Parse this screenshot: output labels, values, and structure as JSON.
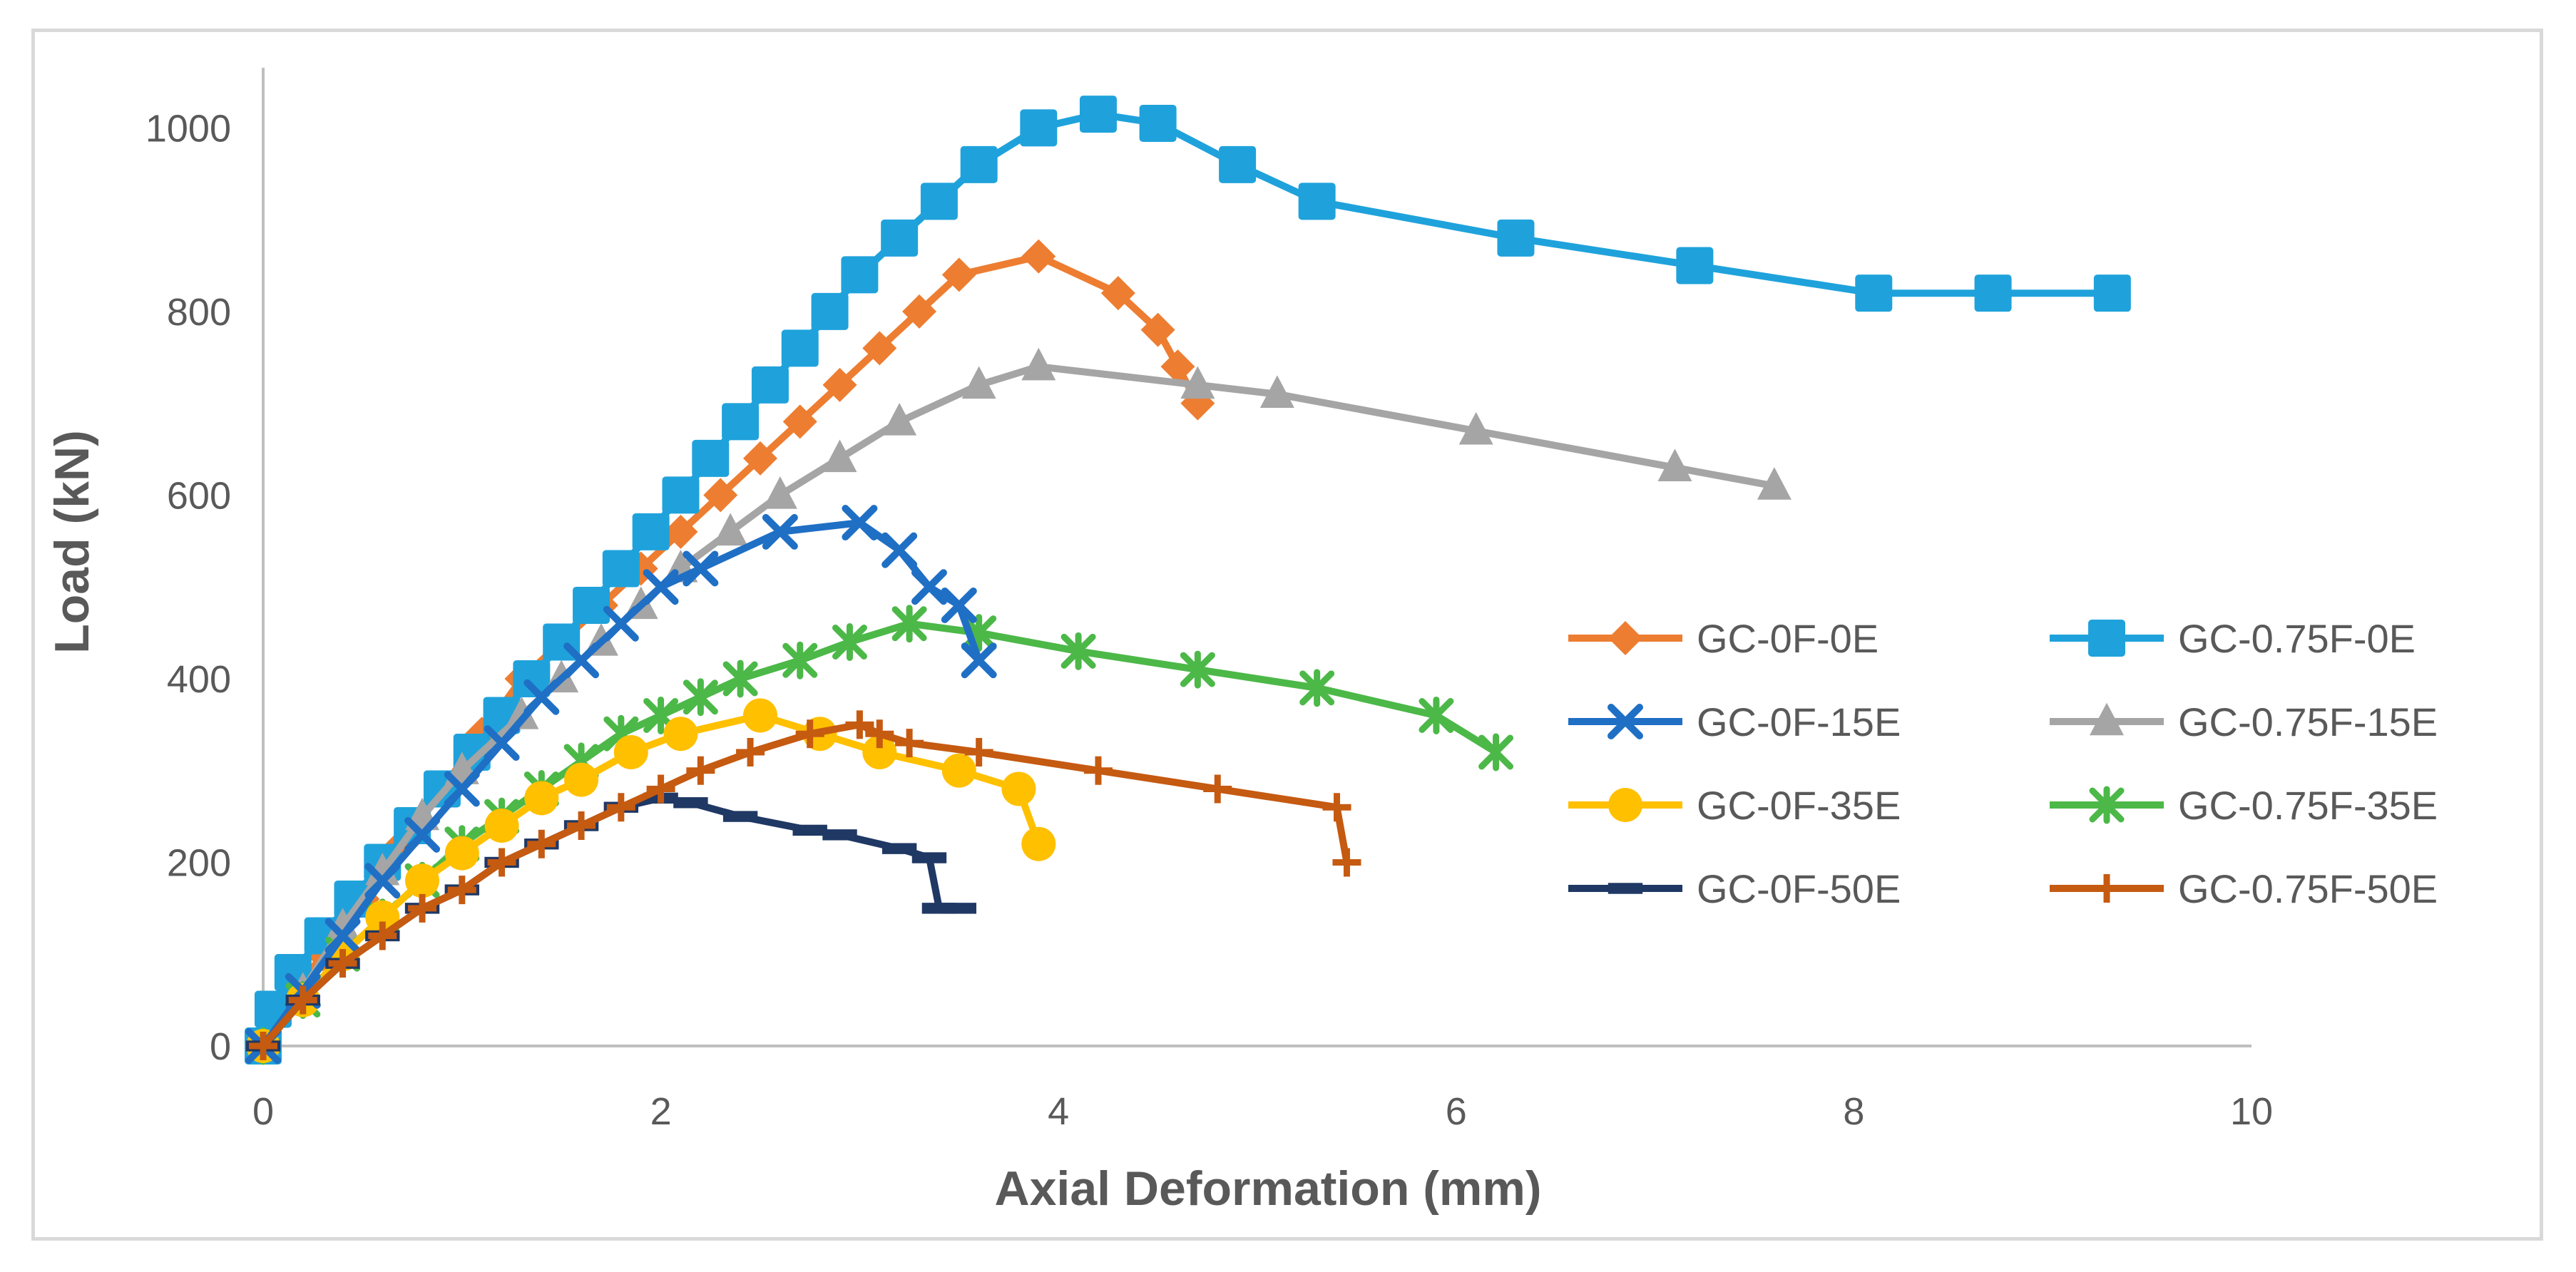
{
  "chart_data": {
    "type": "line",
    "title": "",
    "xlabel": "Axial Deformation (mm)",
    "ylabel": "Load (kN)",
    "xlim": [
      0,
      10
    ],
    "ylim": [
      0,
      1050
    ],
    "xticks": [
      "0",
      "2",
      "4",
      "6",
      "8",
      "10"
    ],
    "yticks": [
      "0",
      "200",
      "400",
      "600",
      "800",
      "1000"
    ],
    "legend_position": "right",
    "series": [
      {
        "name": "GC-0F-0E",
        "color": "#ED7D31",
        "marker": "diamond",
        "x": [
          0,
          0.1,
          0.3,
          0.5,
          0.7,
          0.9,
          1.1,
          1.3,
          1.5,
          1.7,
          1.9,
          2.1,
          2.3,
          2.5,
          2.7,
          2.9,
          3.1,
          3.3,
          3.5,
          3.9,
          4.3,
          4.5,
          4.6,
          4.7
        ],
        "y": [
          0,
          40,
          100,
          160,
          220,
          280,
          340,
          400,
          440,
          480,
          520,
          560,
          600,
          640,
          680,
          720,
          760,
          800,
          840,
          860,
          820,
          780,
          740,
          700
        ]
      },
      {
        "name": "GC-0.75F-0E",
        "color": "#1FA2DB",
        "marker": "square",
        "x": [
          0,
          0.05,
          0.15,
          0.3,
          0.45,
          0.6,
          0.75,
          0.9,
          1.05,
          1.2,
          1.35,
          1.5,
          1.65,
          1.8,
          1.95,
          2.1,
          2.25,
          2.4,
          2.55,
          2.7,
          2.85,
          3.0,
          3.2,
          3.4,
          3.6,
          3.9,
          4.2,
          4.5,
          4.9,
          5.3,
          6.3,
          7.2,
          8.1,
          8.7,
          9.3
        ],
        "y": [
          0,
          40,
          80,
          120,
          160,
          200,
          240,
          280,
          320,
          360,
          400,
          440,
          480,
          520,
          560,
          600,
          640,
          680,
          720,
          760,
          800,
          840,
          880,
          920,
          960,
          1000,
          1015,
          1005,
          960,
          920,
          880,
          850,
          820,
          820,
          820
        ]
      },
      {
        "name": "GC-0F-15E",
        "color": "#1F6FC5",
        "marker": "x",
        "x": [
          0,
          0.2,
          0.4,
          0.6,
          0.8,
          1.0,
          1.2,
          1.4,
          1.6,
          1.8,
          2.0,
          2.2,
          2.6,
          3.0,
          3.2,
          3.35,
          3.5,
          3.6
        ],
        "y": [
          0,
          60,
          120,
          180,
          230,
          280,
          330,
          380,
          420,
          460,
          500,
          520,
          560,
          570,
          540,
          500,
          480,
          420
        ]
      },
      {
        "name": "GC-0.75F-15E",
        "color": "#A5A5A5",
        "marker": "triangle",
        "x": [
          0,
          0.2,
          0.4,
          0.6,
          0.8,
          1.0,
          1.3,
          1.5,
          1.7,
          1.9,
          2.1,
          2.35,
          2.6,
          2.9,
          3.2,
          3.6,
          3.9,
          4.7,
          5.1,
          6.1,
          7.1,
          7.6
        ],
        "y": [
          0,
          60,
          130,
          190,
          250,
          300,
          360,
          400,
          440,
          480,
          520,
          560,
          600,
          640,
          680,
          720,
          740,
          720,
          710,
          670,
          630,
          610
        ]
      },
      {
        "name": "GC-0F-35E",
        "color": "#FFC000",
        "marker": "circle",
        "x": [
          0,
          0.2,
          0.4,
          0.6,
          0.8,
          1.0,
          1.2,
          1.4,
          1.6,
          1.85,
          2.1,
          2.5,
          2.8,
          3.1,
          3.5,
          3.8,
          3.9
        ],
        "y": [
          0,
          50,
          100,
          140,
          180,
          210,
          240,
          270,
          290,
          320,
          340,
          360,
          340,
          320,
          300,
          280,
          220
        ]
      },
      {
        "name": "GC-0.75F-35E",
        "color": "#4CB848",
        "marker": "star",
        "x": [
          0,
          0.2,
          0.4,
          0.6,
          0.8,
          1.0,
          1.2,
          1.4,
          1.6,
          1.8,
          2.0,
          2.2,
          2.4,
          2.7,
          2.95,
          3.25,
          3.6,
          4.1,
          4.7,
          5.3,
          5.9,
          6.2
        ],
        "y": [
          0,
          50,
          100,
          140,
          180,
          220,
          250,
          280,
          310,
          340,
          360,
          380,
          400,
          420,
          440,
          460,
          450,
          430,
          410,
          390,
          360,
          320
        ]
      },
      {
        "name": "GC-0F-50E",
        "color": "#1F3864",
        "marker": "dash",
        "x": [
          0,
          0.2,
          0.4,
          0.6,
          0.8,
          1.0,
          1.2,
          1.4,
          1.6,
          1.8,
          2.0,
          2.15,
          2.4,
          2.75,
          2.9,
          3.2,
          3.35,
          3.4,
          3.5
        ],
        "y": [
          0,
          50,
          90,
          120,
          150,
          170,
          200,
          220,
          240,
          260,
          270,
          265,
          250,
          235,
          230,
          215,
          205,
          150,
          150
        ]
      },
      {
        "name": "GC-0.75F-50E",
        "color": "#C55A11",
        "marker": "plus",
        "x": [
          0,
          0.2,
          0.4,
          0.6,
          0.8,
          1.0,
          1.2,
          1.4,
          1.6,
          1.8,
          2.0,
          2.2,
          2.45,
          2.75,
          3.0,
          3.1,
          3.25,
          3.6,
          4.2,
          4.8,
          5.4,
          5.45
        ],
        "y": [
          0,
          50,
          90,
          120,
          150,
          170,
          200,
          220,
          240,
          260,
          280,
          300,
          320,
          340,
          350,
          340,
          330,
          320,
          300,
          280,
          260,
          200
        ]
      }
    ]
  }
}
